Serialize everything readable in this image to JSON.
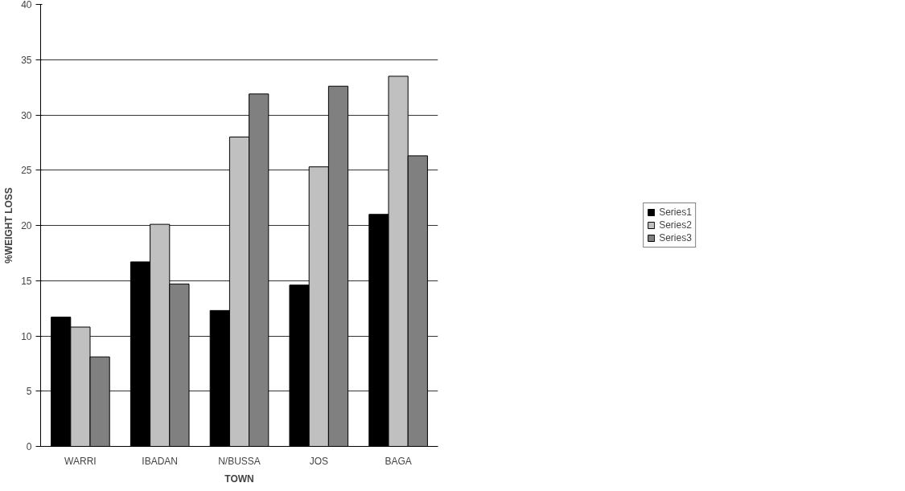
{
  "chart_data": {
    "type": "bar",
    "xlabel": "TOWN",
    "ylabel": "%WEIGHT LOSS",
    "categories": [
      "WARRI",
      "IBADAN",
      "N/BUSSA",
      "JOS",
      "BAGA"
    ],
    "series": [
      {
        "name": "Series1",
        "color": "#000000",
        "values": [
          11.7,
          16.7,
          12.3,
          14.6,
          21.0
        ]
      },
      {
        "name": "Series2",
        "color": "#c0c0c0",
        "values": [
          10.8,
          20.1,
          28.0,
          25.3,
          33.5
        ]
      },
      {
        "name": "Series3",
        "color": "#808080",
        "values": [
          8.1,
          14.7,
          31.9,
          32.6,
          26.3
        ]
      }
    ],
    "ylim": [
      0,
      40
    ],
    "yticks": [
      0,
      5,
      10,
      15,
      20,
      25,
      30,
      35,
      40
    ],
    "grid": "y",
    "legend": "right"
  }
}
